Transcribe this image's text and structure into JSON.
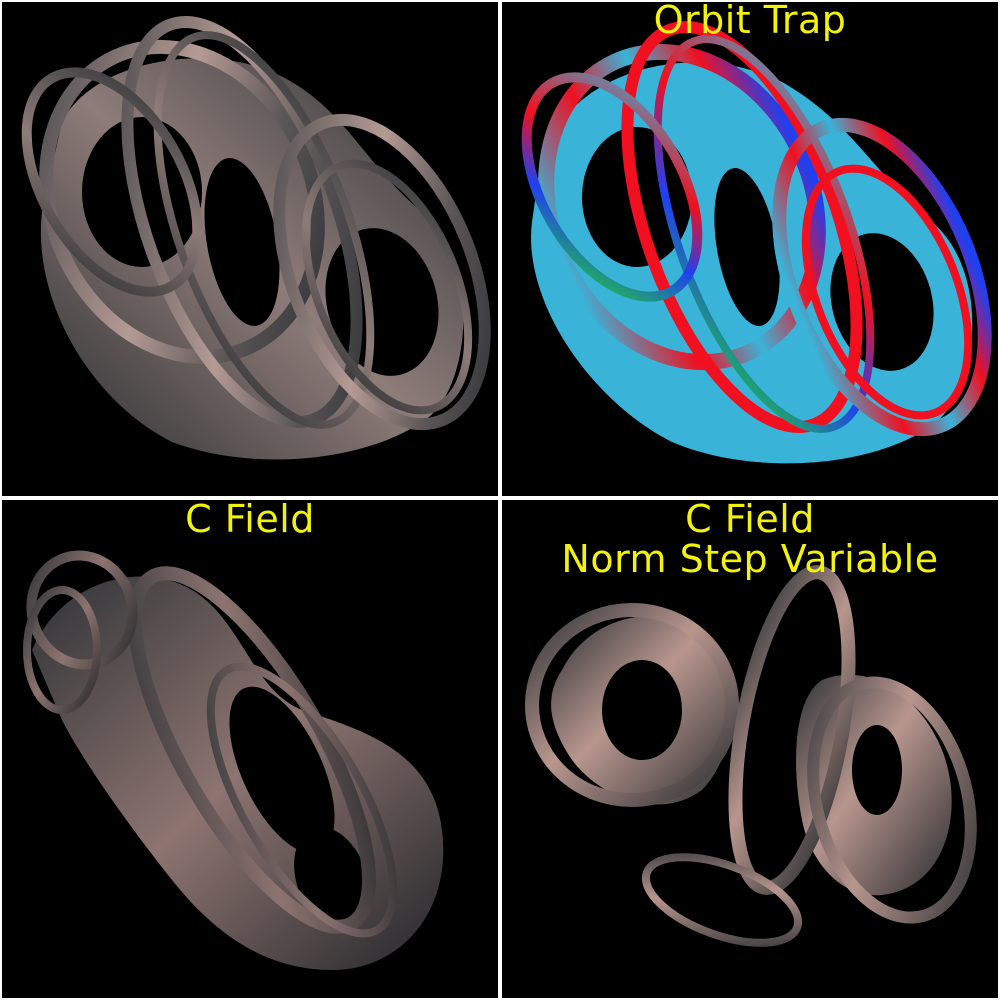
{
  "panels": [
    {
      "id": "default",
      "caption": ""
    },
    {
      "id": "orbit-trap",
      "caption": "Orbit Trap"
    },
    {
      "id": "c-field",
      "caption": "C Field"
    },
    {
      "id": "c-field-norm-step",
      "caption_lines": [
        "C Field",
        "Norm Step Variable"
      ]
    }
  ],
  "colors": {
    "background": "#000000",
    "divider": "#ffffff",
    "caption": "#f2f20a",
    "metal_dark": "#2e3236",
    "metal_mid": "#6e6a6a",
    "metal_light": "#c9a79f",
    "trap_cyan": "#3ab3d9",
    "trap_red": "#f01020",
    "trap_green": "#20e020",
    "trap_blue": "#2040f0"
  }
}
